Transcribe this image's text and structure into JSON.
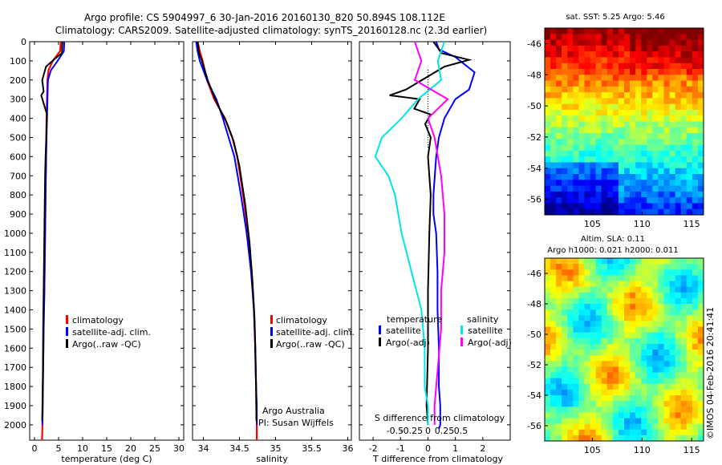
{
  "title_line1": "Argo profile: CS 5904997_6 30-Jan-2016 20160130_820 50.894S 108.112E",
  "title_line2": "Climatology: CARS2009. Satellite-adjusted climatology: synTS_20160128.nc (2.3d earlier)",
  "credit": "©IMOS 04-Feb-2016 20:41:41",
  "colors": {
    "climatology": "#ff0000",
    "satellite": "#0000ff",
    "argo": "#000000",
    "sal_sat": "#00e5e5",
    "sal_argo": "#ff00ff"
  },
  "chart_data": [
    {
      "type": "line",
      "xlabel": "temperature (deg C)",
      "ylabel": "",
      "xlim": [
        -1,
        31
      ],
      "ylim": [
        2080,
        0
      ],
      "xticks": [
        0,
        5,
        10,
        15,
        20,
        25,
        30
      ],
      "yticks": [
        0,
        100,
        200,
        300,
        400,
        500,
        600,
        700,
        800,
        900,
        1000,
        1100,
        1200,
        1300,
        1400,
        1500,
        1600,
        1700,
        1800,
        1900,
        2000
      ],
      "legend": [
        "climatology",
        "satellite-adj. clim.",
        "Argo(..raw -QC)"
      ],
      "series": [
        {
          "name": "climatology",
          "color": "#ff0000",
          "x": [
            5.5,
            5.3,
            3.8,
            2.9,
            2.7,
            2.6,
            2.5,
            2.45,
            2.35,
            2.25,
            2.15,
            2.05,
            1.9,
            1.8,
            1.75,
            1.7,
            1.65,
            1.6,
            1.55,
            1.55
          ],
          "y": [
            0,
            50,
            100,
            150,
            200,
            300,
            400,
            500,
            700,
            900,
            1100,
            1300,
            1500,
            1700,
            1800,
            1900,
            2000,
            2050,
            2080,
            2100
          ]
        },
        {
          "name": "satellite-adj. clim.",
          "color": "#0000ff",
          "x": [
            6.2,
            6.1,
            4.8,
            3.4,
            2.8,
            2.7,
            2.6,
            2.5,
            2.35,
            2.25,
            2.15,
            2.05,
            1.9,
            1.8,
            1.75,
            1.7,
            1.65
          ],
          "y": [
            0,
            50,
            100,
            150,
            200,
            300,
            400,
            500,
            700,
            900,
            1100,
            1300,
            1500,
            1700,
            1800,
            1900,
            2000
          ]
        },
        {
          "name": "Argo(..raw -QC)",
          "color": "#000000",
          "x": [
            5.8,
            5.7,
            4.2,
            2.4,
            1.6,
            1.9,
            1.4,
            2.0,
            2.6,
            2.5,
            2.45,
            2.3,
            2.2,
            2.1,
            2.0,
            1.9,
            1.8,
            1.75,
            1.7,
            1.65,
            1.6
          ],
          "y": [
            0,
            60,
            90,
            130,
            200,
            260,
            280,
            330,
            380,
            450,
            500,
            600,
            700,
            900,
            1100,
            1300,
            1500,
            1700,
            1800,
            1900,
            1980
          ]
        }
      ]
    },
    {
      "type": "line",
      "xlabel": "salinity",
      "ylabel": "",
      "xlim": [
        33.85,
        36.05
      ],
      "ylim": [
        2080,
        0
      ],
      "xticks": [
        34,
        34.5,
        35,
        35.5,
        36
      ],
      "xtick_labels": [
        "34",
        "34.5",
        "35",
        "35.5",
        "36"
      ],
      "legend": [
        "climatology",
        "satellite-adj. clim.",
        "Argo(..raw -QC)"
      ],
      "annotation": [
        "Argo Australia",
        "PI: Susan Wijffels"
      ],
      "series": [
        {
          "name": "climatology",
          "color": "#ff0000",
          "x": [
            33.92,
            33.95,
            33.99,
            34.05,
            34.15,
            34.3,
            34.4,
            34.47,
            34.55,
            34.62,
            34.67,
            34.7,
            34.72,
            34.73,
            34.735,
            34.74,
            34.74
          ],
          "y": [
            0,
            50,
            100,
            200,
            300,
            400,
            500,
            600,
            800,
            1000,
            1200,
            1400,
            1600,
            1800,
            1900,
            2000,
            2100
          ]
        },
        {
          "name": "satellite-adj. clim.",
          "color": "#0000ff",
          "x": [
            33.9,
            33.92,
            33.95,
            34.05,
            34.18,
            34.27,
            34.35,
            34.43,
            34.52,
            34.6,
            34.66,
            34.7,
            34.72,
            34.73,
            34.74,
            34.74
          ],
          "y": [
            0,
            50,
            100,
            200,
            300,
            400,
            500,
            600,
            800,
            1000,
            1200,
            1400,
            1600,
            1800,
            1900,
            2000
          ]
        },
        {
          "name": "Argo(..raw -QC)",
          "color": "#000000",
          "x": [
            33.92,
            33.94,
            33.98,
            34.06,
            34.12,
            34.2,
            34.32,
            34.42,
            34.5,
            34.58,
            34.64,
            34.68,
            34.71,
            34.72,
            34.73,
            34.735
          ],
          "y": [
            0,
            60,
            100,
            200,
            260,
            330,
            420,
            520,
            650,
            850,
            1050,
            1250,
            1450,
            1650,
            1800,
            1980
          ]
        }
      ]
    },
    {
      "type": "line",
      "xlabel": "T difference from climatology",
      "ylabel": "",
      "xlabel_top": "S difference from climatology",
      "xlim": [
        -2.5,
        3
      ],
      "ylim": [
        2080,
        0
      ],
      "xticks": [
        -2,
        -1,
        0,
        1,
        2
      ],
      "s_ticks": [
        -0.5,
        -0.25,
        0,
        0.25,
        0.5
      ],
      "s_tick_labels": [
        "-0.5",
        "-0.25",
        "0",
        "0.25",
        "0.5"
      ],
      "legend_titles": [
        "temperature",
        "salinity"
      ],
      "legend": [
        "satellite",
        "Argo(-adj)",
        "satellite",
        "Argo(-adj)"
      ],
      "series": [
        {
          "name": "satellite",
          "color": "#0000ff",
          "x": [
            0.3,
            0.4,
            1.0,
            1.7,
            1.5,
            1.0,
            0.6,
            0.4,
            0.3,
            0.25,
            0.2,
            0.2,
            0.3,
            0.35,
            0.35,
            0.4,
            0.4,
            0.45,
            0.45,
            0.4
          ],
          "y": [
            0,
            40,
            80,
            160,
            250,
            300,
            400,
            500,
            600,
            700,
            800,
            900,
            1000,
            1200,
            1400,
            1600,
            1800,
            1900,
            2000,
            2020
          ]
        },
        {
          "name": "Argo(-adj)",
          "color": "#000000",
          "x": [
            0.2,
            0.5,
            1.5,
            0.6,
            -0.8,
            -1.4,
            -0.3,
            -0.5,
            0.1,
            -0.1,
            0.1,
            0.0,
            0.1,
            0.05,
            0.0,
            0.0,
            -0.05,
            0.0
          ],
          "y": [
            0,
            60,
            95,
            130,
            250,
            280,
            300,
            350,
            380,
            430,
            500,
            600,
            800,
            1000,
            1300,
            1600,
            1900,
            2000
          ]
        },
        {
          "name": "satellite",
          "color": "#00e5e5",
          "x": [
            0.25,
            0.15,
            0.2,
            -0.15,
            -0.4,
            -0.7,
            -0.8,
            -0.6,
            -0.5,
            -0.4,
            -0.25,
            -0.1,
            -0.05,
            -0.05,
            0.0,
            0.0
          ],
          "y": [
            0,
            100,
            200,
            300,
            400,
            500,
            600,
            700,
            800,
            1000,
            1200,
            1400,
            1600,
            1800,
            1900,
            2000
          ]
        },
        {
          "name": "Argo(-adj)",
          "color": "#ff00ff",
          "x": [
            -0.2,
            -0.15,
            -0.1,
            -0.2,
            0.3,
            0.0,
            0.1,
            0.2,
            0.25,
            0.25,
            0.2,
            0.2,
            0.15,
            0.1,
            0.1
          ],
          "y": [
            0,
            50,
            100,
            200,
            300,
            400,
            500,
            700,
            900,
            1100,
            1300,
            1500,
            1700,
            1900,
            2000
          ]
        }
      ]
    },
    {
      "type": "heatmap",
      "title": "sat. SST: 5.25 Argo: 5.46",
      "xlim": [
        100.2,
        116.2
      ],
      "ylim": [
        -57,
        -45
      ],
      "xticks": [
        105,
        110,
        115
      ],
      "yticks": [
        -46,
        -48,
        -50,
        -52,
        -54,
        -56
      ]
    },
    {
      "type": "heatmap",
      "title": "Altim. SLA: 0.11",
      "subtitle": "Argo h1000: 0.021 h2000: 0.011",
      "xlim": [
        100.2,
        116.2
      ],
      "ylim": [
        -57,
        -45
      ],
      "xticks": [
        105,
        110,
        115
      ],
      "yticks": [
        -46,
        -48,
        -50,
        -52,
        -54,
        -56
      ]
    }
  ]
}
